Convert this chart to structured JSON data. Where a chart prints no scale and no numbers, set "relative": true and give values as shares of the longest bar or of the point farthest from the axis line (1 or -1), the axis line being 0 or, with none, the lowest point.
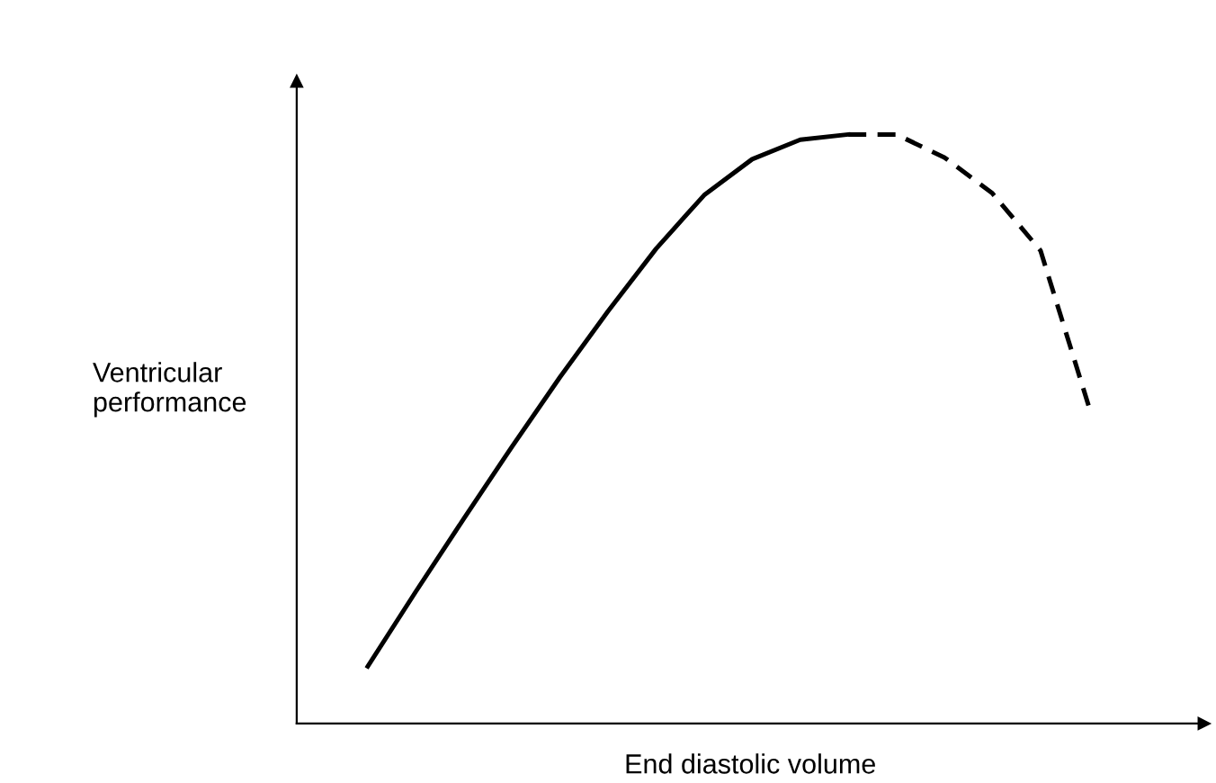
{
  "chart_data": {
    "type": "line",
    "relative": true,
    "xlabel": "End diastolic volume",
    "ylabel": "Ventricular\nperformance",
    "tick_labels": false,
    "grid": false,
    "legend": false,
    "marker": "none",
    "categories": [
      null,
      null,
      null,
      null,
      null,
      null,
      null,
      null,
      null,
      null,
      null,
      null,
      null,
      null,
      null,
      null
    ],
    "series": [
      {
        "color": "#000000",
        "line_style": "solid",
        "values": [
          0.097,
          0.224,
          0.348,
          0.47,
          0.588,
          0.7,
          0.806,
          0.897,
          0.958,
          0.991,
          1.0,
          null,
          null,
          null,
          null,
          null
        ]
      },
      {
        "color": "#000000",
        "line_style": "dashed",
        "values": [
          null,
          null,
          null,
          null,
          null,
          null,
          null,
          null,
          null,
          null,
          1.0,
          1.0,
          0.961,
          0.9,
          0.803,
          0.54
        ]
      }
    ]
  }
}
